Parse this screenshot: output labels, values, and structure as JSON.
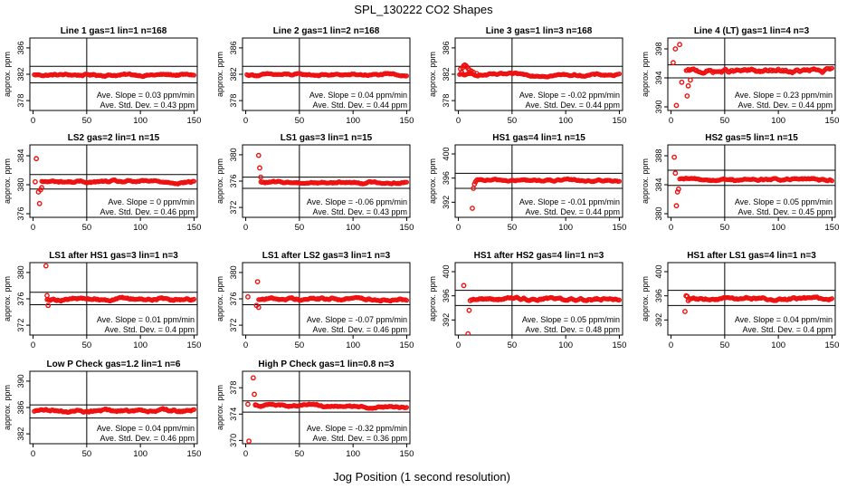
{
  "figure": {
    "title": "SPL_130222  CO2 Shapes",
    "xlabel": "Jog Position (1 second resolution)"
  },
  "colors": {
    "points": "#ee1111",
    "frame": "#000000",
    "text": "#000000"
  },
  "chart_data": [
    {
      "type": "scatter",
      "title": "Line 1 gas=1 lin=1 n=168",
      "ylabel": "approx. ppm",
      "xlim": [
        -3,
        153
      ],
      "ylim": [
        376.5,
        387.5
      ],
      "xticks": [
        0,
        50,
        100,
        150
      ],
      "yticks": [
        378,
        382,
        386
      ],
      "hlines": [
        383.2,
        380.7
      ],
      "vline": 50,
      "slope_text": "Ave. Slope = 0.03  ppm/min",
      "std_text": "Ave. Std. Dev. = 0.43  ppm",
      "series": [
        {
          "base": 381.9,
          "noise": 0.2,
          "start": 1,
          "end": 150,
          "spikes": []
        }
      ]
    },
    {
      "type": "scatter",
      "title": "Line 2 gas=1 lin=2 n=168",
      "ylabel": "approx. ppm",
      "xlim": [
        -3,
        153
      ],
      "ylim": [
        376.5,
        387.5
      ],
      "xticks": [
        0,
        50,
        100,
        150
      ],
      "yticks": [
        378,
        382,
        386
      ],
      "hlines": [
        383.2,
        380.7
      ],
      "vline": 50,
      "slope_text": "Ave. Slope = 0.04  ppm/min",
      "std_text": "Ave. Std. Dev. = 0.44  ppm",
      "series": [
        {
          "base": 381.9,
          "noise": 0.2,
          "start": 1,
          "end": 150,
          "spikes": []
        }
      ]
    },
    {
      "type": "scatter",
      "title": "Line 3 gas=1 lin=3 n=168",
      "ylabel": "approx. ppm",
      "xlim": [
        -3,
        153
      ],
      "ylim": [
        376.5,
        387.5
      ],
      "xticks": [
        0,
        50,
        100,
        150
      ],
      "yticks": [
        378,
        382,
        386
      ],
      "hlines": [
        383.2,
        380.7
      ],
      "vline": 50,
      "slope_text": "Ave. Slope = -0.02  ppm/min",
      "std_text": "Ave. Std. Dev. = 0.44  ppm",
      "series": [
        {
          "base": 381.9,
          "noise": 0.2,
          "start": 1,
          "end": 150,
          "spikes": [
            [
              2,
              382.8
            ],
            [
              3,
              382.3
            ],
            [
              4,
              383.0
            ],
            [
              5,
              383.3
            ],
            [
              6,
              383.4
            ],
            [
              7,
              383.3
            ],
            [
              8,
              383.1
            ],
            [
              9,
              382.9
            ],
            [
              10,
              382.7
            ],
            [
              12,
              382.5
            ],
            [
              14,
              382.3
            ],
            [
              17,
              382.1
            ]
          ]
        }
      ]
    },
    {
      "type": "scatter",
      "title": "Line 4 (LT) gas=1 lin=4 n=3",
      "ylabel": "approx. ppm",
      "xlim": [
        -3,
        153
      ],
      "ylim": [
        389.5,
        399.5
      ],
      "xticks": [
        0,
        50,
        100,
        150
      ],
      "yticks": [
        390,
        394,
        398
      ],
      "hlines": [
        395.8,
        394.0
      ],
      "vline": 50,
      "slope_text": "Ave. Slope = 0.23  ppm/min",
      "std_text": "Ave. Std. Dev. = 0.44  ppm",
      "series": [
        {
          "base": 394.9,
          "noise": 0.35,
          "start": 14,
          "end": 150,
          "spikes": [
            [
              2,
              396.1
            ],
            [
              4,
              398.0
            ],
            [
              5,
              390.2
            ],
            [
              8,
              398.6
            ],
            [
              10,
              393.4
            ],
            [
              15,
              391.5
            ],
            [
              16,
              392.9
            ],
            [
              18,
              393.7
            ]
          ]
        }
      ]
    },
    {
      "type": "scatter",
      "title": "LS2 gas=2 lin=1 n=15",
      "ylabel": "approx. ppm",
      "xlim": [
        -3,
        153
      ],
      "ylim": [
        375.5,
        385.5
      ],
      "xticks": [
        0,
        50,
        100,
        150
      ],
      "yticks": [
        376,
        380,
        384
      ],
      "hlines": [
        381.4,
        379.4
      ],
      "vline": 50,
      "slope_text": "Ave. Slope = 0  ppm/min",
      "std_text": "Ave. Std. Dev. = 0.46  ppm",
      "series": [
        {
          "base": 380.4,
          "noise": 0.2,
          "start": 8,
          "end": 150,
          "spikes": [
            [
              2,
              380.4
            ],
            [
              3,
              383.6
            ],
            [
              5,
              379.0
            ],
            [
              6,
              377.4
            ],
            [
              7,
              379.3
            ],
            [
              8,
              379.6
            ]
          ]
        }
      ]
    },
    {
      "type": "scatter",
      "title": "LS1 gas=3 lin=1 n=15",
      "ylabel": "approx. ppm",
      "xlim": [
        -3,
        153
      ],
      "ylim": [
        370.5,
        381.5
      ],
      "xticks": [
        0,
        50,
        100,
        150
      ],
      "yticks": [
        372,
        376,
        380
      ],
      "hlines": [
        376.6,
        374.9
      ],
      "vline": 50,
      "slope_text": "Ave. Slope = -0.06  ppm/min",
      "std_text": "Ave. Std. Dev. = 0.43  ppm",
      "series": [
        {
          "base": 375.8,
          "noise": 0.2,
          "start": 14,
          "end": 150,
          "spikes": [
            [
              12,
              379.9
            ],
            [
              13,
              378.0
            ],
            [
              14,
              376.6
            ]
          ]
        }
      ]
    },
    {
      "type": "scatter",
      "title": "HS1 gas=4 lin=1 n=15",
      "ylabel": "approx. ppm",
      "xlim": [
        -3,
        153
      ],
      "ylim": [
        389.5,
        401.5
      ],
      "xticks": [
        0,
        50,
        100,
        150
      ],
      "yticks": [
        392,
        396,
        400
      ],
      "hlines": [
        396.8,
        394.3
      ],
      "vline": 50,
      "slope_text": "Ave. Slope = -0.01  ppm/min",
      "std_text": "Ave. Std. Dev. = 0.44  ppm",
      "series": [
        {
          "base": 395.6,
          "noise": 0.2,
          "start": 17,
          "end": 150,
          "spikes": [
            [
              13,
              391.0
            ],
            [
              14,
              394.3
            ],
            [
              15,
              395.0
            ],
            [
              16,
              395.4
            ]
          ]
        }
      ]
    },
    {
      "type": "scatter",
      "title": "HS2 gas=5 lin=1 n=15",
      "ylabel": "approx. ppm",
      "xlim": [
        -3,
        153
      ],
      "ylim": [
        379.5,
        389.5
      ],
      "xticks": [
        0,
        50,
        100,
        150
      ],
      "yticks": [
        380,
        384,
        388
      ],
      "hlines": [
        386.0,
        383.9
      ],
      "vline": 50,
      "slope_text": "Ave. Slope = 0.05  ppm/min",
      "std_text": "Ave. Std. Dev. = 0.45  ppm",
      "series": [
        {
          "base": 384.7,
          "noise": 0.2,
          "start": 8,
          "end": 150,
          "spikes": [
            [
              3,
              387.8
            ],
            [
              4,
              385.6
            ],
            [
              5,
              381.1
            ],
            [
              6,
              383.0
            ],
            [
              7,
              383.4
            ]
          ]
        }
      ]
    },
    {
      "type": "scatter",
      "title": "LS1 after HS1 gas=3 lin=1 n=3",
      "ylabel": "approx. ppm",
      "xlim": [
        -3,
        153
      ],
      "ylim": [
        370.5,
        381.5
      ],
      "xticks": [
        0,
        50,
        100,
        150
      ],
      "yticks": [
        372,
        376,
        380
      ],
      "hlines": [
        377.0,
        375.1
      ],
      "vline": 50,
      "slope_text": "Ave. Slope = 0.01  ppm/min",
      "std_text": "Ave. Std. Dev. = 0.4  ppm",
      "series": [
        {
          "base": 376.0,
          "noise": 0.25,
          "start": 13,
          "end": 150,
          "spikes": [
            [
              12,
              381.0
            ],
            [
              13,
              376.5
            ],
            [
              14,
              375.0
            ]
          ]
        }
      ]
    },
    {
      "type": "scatter",
      "title": "LS1 after LS2 gas=3 lin=1 n=3",
      "ylabel": "approx. ppm",
      "xlim": [
        -3,
        153
      ],
      "ylim": [
        370.5,
        381.5
      ],
      "xticks": [
        0,
        50,
        100,
        150
      ],
      "yticks": [
        372,
        376,
        380
      ],
      "hlines": [
        377.0,
        375.1
      ],
      "vline": 50,
      "slope_text": "Ave. Slope = -0.07  ppm/min",
      "std_text": "Ave. Std. Dev. = 0.46  ppm",
      "series": [
        {
          "base": 376.0,
          "noise": 0.25,
          "start": 12,
          "end": 150,
          "spikes": [
            [
              2,
              376.3
            ],
            [
              10,
              375.0
            ],
            [
              11,
              378.6
            ],
            [
              12,
              374.7
            ]
          ]
        }
      ]
    },
    {
      "type": "scatter",
      "title": "HS1 after HS2 gas=4 lin=1 n=3",
      "ylabel": "approx. ppm",
      "xlim": [
        -3,
        153
      ],
      "ylim": [
        389.5,
        401.5
      ],
      "xticks": [
        0,
        50,
        100,
        150
      ],
      "yticks": [
        392,
        396,
        400
      ],
      "hlines": [
        396.9,
        394.4
      ],
      "vline": 50,
      "slope_text": "Ave. Slope = 0.05  ppm/min",
      "std_text": "Ave. Std. Dev. = 0.48  ppm",
      "series": [
        {
          "base": 395.5,
          "noise": 0.3,
          "start": 12,
          "end": 150,
          "spikes": [
            [
              5,
              397.7
            ],
            [
              9,
              389.7
            ],
            [
              10,
              393.6
            ],
            [
              11,
              395.2
            ]
          ]
        }
      ]
    },
    {
      "type": "scatter",
      "title": "HS1 after LS1 gas=4 lin=1 n=3",
      "ylabel": "approx. ppm",
      "xlim": [
        -3,
        153
      ],
      "ylim": [
        389.5,
        401.5
      ],
      "xticks": [
        0,
        50,
        100,
        150
      ],
      "yticks": [
        392,
        396,
        400
      ],
      "hlines": [
        396.9,
        394.4
      ],
      "vline": 50,
      "slope_text": "Ave. Slope = 0.04  ppm/min",
      "std_text": "Ave. Std. Dev. = 0.4  ppm",
      "series": [
        {
          "base": 395.5,
          "noise": 0.25,
          "start": 17,
          "end": 150,
          "spikes": [
            [
              13,
              393.4
            ],
            [
              14,
              396.0
            ],
            [
              15,
              395.9
            ],
            [
              16,
              395.2
            ]
          ]
        }
      ]
    },
    {
      "type": "scatter",
      "title": "Low P Check gas=1.2 lin=1 n=6",
      "ylabel": "approx. ppm",
      "xlim": [
        -3,
        153
      ],
      "ylim": [
        380.5,
        391.5
      ],
      "xticks": [
        0,
        50,
        100,
        150
      ],
      "yticks": [
        382,
        386,
        390
      ],
      "hlines": [
        386.4,
        384.4
      ],
      "vline": 50,
      "slope_text": "Ave. Slope = 0.04  ppm/min",
      "std_text": "Ave. Std. Dev. = 0.46  ppm",
      "series": [
        {
          "base": 385.5,
          "noise": 0.25,
          "start": 1,
          "end": 150,
          "spikes": []
        }
      ]
    },
    {
      "type": "scatter",
      "title": "High P Check gas=1 lin=0.8 n=3",
      "ylabel": "approx. ppm",
      "xlim": [
        -3,
        153
      ],
      "ylim": [
        369.5,
        380.5
      ],
      "xticks": [
        0,
        50,
        100,
        150
      ],
      "yticks": [
        370,
        374,
        378
      ],
      "hlines": [
        376.0,
        374.3
      ],
      "vline": 50,
      "slope_text": "Ave. Slope = -0.32  ppm/min",
      "std_text": "Ave. Std. Dev. = 0.36  ppm",
      "series": [
        {
          "base": 375.4,
          "noise": 0.2,
          "trend": -0.45,
          "start": 9,
          "end": 150,
          "spikes": [
            [
              2,
              375.5
            ],
            [
              3,
              369.9
            ],
            [
              7,
              379.5
            ],
            [
              8,
              377.0
            ],
            [
              9,
              375.4
            ]
          ]
        }
      ]
    }
  ]
}
